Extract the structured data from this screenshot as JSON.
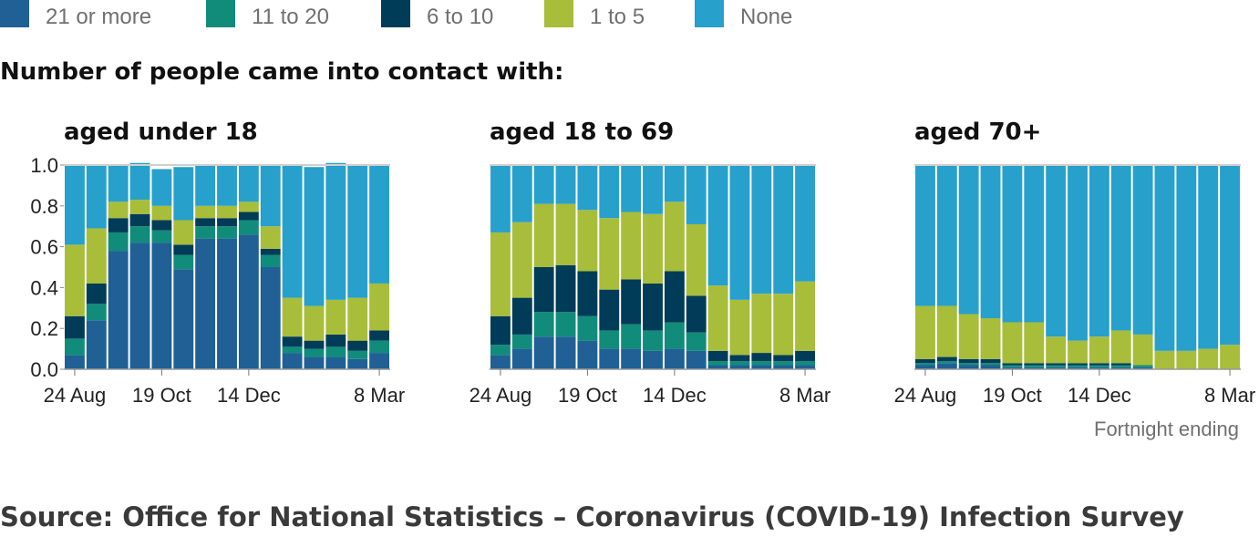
{
  "legend": [
    {
      "label": "21 or more",
      "color": "#206095"
    },
    {
      "label": "11 to 20",
      "color": "#118c7b"
    },
    {
      "label": "6 to 10",
      "color": "#003c57"
    },
    {
      "label": "1 to 5",
      "color": "#a8bd3a"
    },
    {
      "label": "None",
      "color": "#27a0cc"
    }
  ],
  "heading": "Number of people came into contact with:",
  "x_axis_caption": "Fortnight ending",
  "source": "Source: Office for National Statistics – Coronavirus (COVID-19) Infection Survey",
  "chart_data": [
    {
      "type": "bar",
      "stacked": true,
      "title": "aged under 18",
      "ylim": [
        0,
        1.0
      ],
      "yticks": [
        "1.0",
        "0.8",
        "0.6",
        "0.4",
        "0.2",
        "0.0"
      ],
      "xtick_labels": [
        {
          "index": 0,
          "label": "24 Aug"
        },
        {
          "index": 4,
          "label": "19 Oct"
        },
        {
          "index": 8,
          "label": "14 Dec"
        },
        {
          "index": 14,
          "label": "8 Mar"
        }
      ],
      "series": [
        {
          "name": "21 or more",
          "values": [
            0.07,
            0.24,
            0.58,
            0.62,
            0.62,
            0.49,
            0.64,
            0.64,
            0.66,
            0.5,
            0.08,
            0.06,
            0.06,
            0.05,
            0.08
          ]
        },
        {
          "name": "11 to 20",
          "values": [
            0.08,
            0.08,
            0.09,
            0.08,
            0.06,
            0.07,
            0.06,
            0.06,
            0.07,
            0.06,
            0.03,
            0.04,
            0.05,
            0.04,
            0.06
          ]
        },
        {
          "name": "6 to 10",
          "values": [
            0.11,
            0.1,
            0.07,
            0.06,
            0.05,
            0.05,
            0.04,
            0.04,
            0.04,
            0.03,
            0.05,
            0.04,
            0.06,
            0.05,
            0.05
          ]
        },
        {
          "name": "1 to 5",
          "values": [
            0.35,
            0.27,
            0.08,
            0.07,
            0.07,
            0.12,
            0.06,
            0.06,
            0.05,
            0.11,
            0.19,
            0.17,
            0.17,
            0.21,
            0.23
          ]
        },
        {
          "name": "None",
          "values": [
            0.39,
            0.31,
            0.18,
            0.18,
            0.18,
            0.26,
            0.2,
            0.2,
            0.18,
            0.3,
            0.65,
            0.68,
            0.67,
            0.65,
            0.58
          ]
        }
      ]
    },
    {
      "type": "bar",
      "stacked": true,
      "title": "aged 18 to 69",
      "ylim": [
        0,
        1.0
      ],
      "yticks": [],
      "xtick_labels": [
        {
          "index": 0,
          "label": "24 Aug"
        },
        {
          "index": 4,
          "label": "19 Oct"
        },
        {
          "index": 8,
          "label": "14 Dec"
        },
        {
          "index": 14,
          "label": "8 Mar"
        }
      ],
      "series": [
        {
          "name": "21 or more",
          "values": [
            0.07,
            0.1,
            0.16,
            0.16,
            0.14,
            0.1,
            0.1,
            0.09,
            0.1,
            0.09,
            0.02,
            0.02,
            0.02,
            0.02,
            0.02
          ]
        },
        {
          "name": "11 to 20",
          "values": [
            0.05,
            0.07,
            0.12,
            0.12,
            0.12,
            0.09,
            0.12,
            0.1,
            0.13,
            0.09,
            0.02,
            0.02,
            0.02,
            0.02,
            0.02
          ]
        },
        {
          "name": "6 to 10",
          "values": [
            0.14,
            0.18,
            0.22,
            0.23,
            0.22,
            0.2,
            0.22,
            0.23,
            0.25,
            0.18,
            0.05,
            0.03,
            0.04,
            0.03,
            0.05
          ]
        },
        {
          "name": "1 to 5",
          "values": [
            0.41,
            0.37,
            0.31,
            0.3,
            0.3,
            0.35,
            0.33,
            0.34,
            0.34,
            0.35,
            0.32,
            0.27,
            0.29,
            0.3,
            0.34
          ]
        },
        {
          "name": "None",
          "values": [
            0.33,
            0.28,
            0.19,
            0.19,
            0.22,
            0.26,
            0.23,
            0.24,
            0.18,
            0.29,
            0.59,
            0.66,
            0.63,
            0.63,
            0.57
          ]
        }
      ]
    },
    {
      "type": "bar",
      "stacked": true,
      "title": "aged 70+",
      "ylim": [
        0,
        1.0
      ],
      "yticks": [],
      "xtick_labels": [
        {
          "index": 0,
          "label": "24 Aug"
        },
        {
          "index": 4,
          "label": "19 Oct"
        },
        {
          "index": 8,
          "label": "14 Dec"
        },
        {
          "index": 14,
          "label": "8 Mar"
        }
      ],
      "series": [
        {
          "name": "21 or more",
          "values": [
            0.02,
            0.03,
            0.02,
            0.02,
            0.01,
            0.01,
            0.01,
            0.01,
            0.01,
            0.01,
            0.01,
            0.0,
            0.0,
            0.0,
            0.0
          ]
        },
        {
          "name": "11 to 20",
          "values": [
            0.01,
            0.01,
            0.01,
            0.01,
            0.01,
            0.01,
            0.01,
            0.01,
            0.01,
            0.01,
            0.01,
            0.0,
            0.0,
            0.0,
            0.0
          ]
        },
        {
          "name": "6 to 10",
          "values": [
            0.02,
            0.02,
            0.02,
            0.02,
            0.01,
            0.01,
            0.01,
            0.01,
            0.01,
            0.01,
            0.0,
            0.0,
            0.0,
            0.0,
            0.0
          ]
        },
        {
          "name": "1 to 5",
          "values": [
            0.26,
            0.25,
            0.22,
            0.2,
            0.2,
            0.2,
            0.13,
            0.11,
            0.13,
            0.16,
            0.15,
            0.09,
            0.09,
            0.1,
            0.12
          ]
        },
        {
          "name": "None",
          "values": [
            0.69,
            0.69,
            0.73,
            0.75,
            0.77,
            0.77,
            0.84,
            0.86,
            0.84,
            0.81,
            0.83,
            0.91,
            0.91,
            0.9,
            0.88
          ]
        }
      ]
    }
  ]
}
